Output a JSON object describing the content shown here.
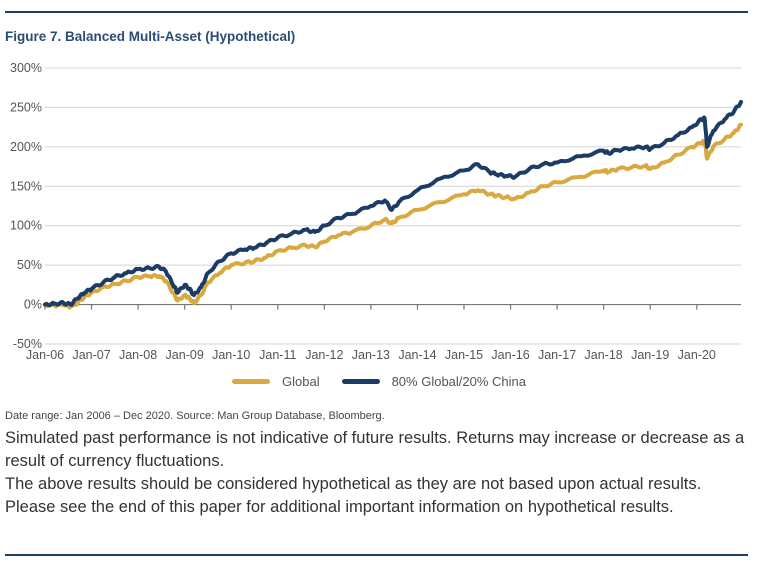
{
  "header": {
    "title": "Figure 7. Balanced Multi-Asset (Hypothetical)"
  },
  "colors": {
    "rule": "#1f3f66",
    "title": "#2b4c74",
    "global": "#d9a93f",
    "china_mix": "#1c3c66",
    "grid": "#d4d4d4",
    "axis": "#777777"
  },
  "chart_data": {
    "type": "line",
    "title": "Figure 7. Balanced Multi-Asset (Hypothetical)",
    "xlabel": "",
    "ylabel": "",
    "ylim": [
      -50,
      300
    ],
    "yticks": [
      300,
      250,
      200,
      150,
      100,
      50,
      0,
      -50
    ],
    "ytick_labels": [
      "300%",
      "250%",
      "200%",
      "150%",
      "100%",
      "50%",
      "0%",
      "-50%"
    ],
    "xlim": [
      2006.0,
      2020.95
    ],
    "xticks": [
      2006,
      2007,
      2008,
      2009,
      2010,
      2011,
      2012,
      2013,
      2014,
      2015,
      2016,
      2017,
      2018,
      2019,
      2020
    ],
    "xtick_labels": [
      "Jan-06",
      "Jan-07",
      "Jan-08",
      "Jan-09",
      "Jan-10",
      "Jan-11",
      "Jan-12",
      "Jan-13",
      "Jan-14",
      "Jan-15",
      "Jan-16",
      "Jan-17",
      "Jan-18",
      "Jan-19",
      "Jan-20"
    ],
    "grid": true,
    "legend_position": "bottom",
    "x": [
      2006.0,
      2006.2,
      2006.4,
      2006.55,
      2006.7,
      2006.85,
      2007.0,
      2007.25,
      2007.5,
      2007.75,
      2008.0,
      2008.25,
      2008.45,
      2008.6,
      2008.75,
      2008.85,
      2009.0,
      2009.1,
      2009.2,
      2009.35,
      2009.5,
      2009.75,
      2010.0,
      2010.3,
      2010.5,
      2010.75,
      2011.0,
      2011.3,
      2011.6,
      2011.8,
      2012.0,
      2012.3,
      2012.6,
      2013.0,
      2013.3,
      2013.45,
      2013.6,
      2014.0,
      2014.5,
      2015.0,
      2015.3,
      2015.55,
      2015.7,
      2015.9,
      2016.1,
      2016.4,
      2016.7,
      2017.0,
      2017.5,
      2018.0,
      2018.1,
      2018.3,
      2018.6,
      2018.9,
      2019.0,
      2019.3,
      2019.6,
      2019.9,
      2020.1,
      2020.17,
      2020.22,
      2020.35,
      2020.6,
      2020.8,
      2020.95
    ],
    "series": [
      {
        "name": "Global",
        "color": "#d9a93f",
        "values": [
          0,
          -1,
          0,
          -3,
          2,
          10,
          15,
          22,
          26,
          30,
          35,
          36,
          36,
          30,
          15,
          5,
          12,
          8,
          2,
          12,
          28,
          40,
          50,
          53,
          55,
          60,
          68,
          72,
          75,
          73,
          80,
          88,
          92,
          100,
          108,
          103,
          110,
          120,
          130,
          140,
          145,
          140,
          138,
          136,
          134,
          142,
          150,
          155,
          162,
          170,
          168,
          172,
          174,
          176,
          172,
          180,
          190,
          200,
          205,
          207,
          185,
          200,
          210,
          218,
          228
        ]
      },
      {
        "name": "80% Global/20% China",
        "color": "#1c3c66",
        "values": [
          0,
          1,
          2,
          0,
          8,
          15,
          20,
          28,
          35,
          40,
          45,
          46,
          48,
          42,
          25,
          15,
          25,
          20,
          12,
          22,
          40,
          55,
          65,
          70,
          72,
          78,
          85,
          90,
          95,
          92,
          100,
          110,
          115,
          125,
          132,
          120,
          130,
          145,
          160,
          170,
          178,
          168,
          165,
          163,
          162,
          172,
          178,
          180,
          188,
          195,
          192,
          196,
          198,
          200,
          197,
          205,
          215,
          225,
          235,
          236,
          200,
          220,
          235,
          245,
          257
        ]
      }
    ]
  },
  "legend": {
    "items": [
      {
        "label": "Global",
        "color": "#d9a93f"
      },
      {
        "label": "80% Global/20% China",
        "color": "#1c3c66"
      }
    ]
  },
  "footer": {
    "source": "Date range: Jan 2006 – Dec 2020. Source: Man Group Database, Bloomberg.",
    "disclaimer_1": "Simulated past performance is not indicative of future results. Returns may increase or decrease as a result of currency fluctuations.",
    "disclaimer_2": "The above results should be considered hypothetical as they are not based upon actual results. Please see the end of this paper for additional important information on hypothetical results."
  }
}
